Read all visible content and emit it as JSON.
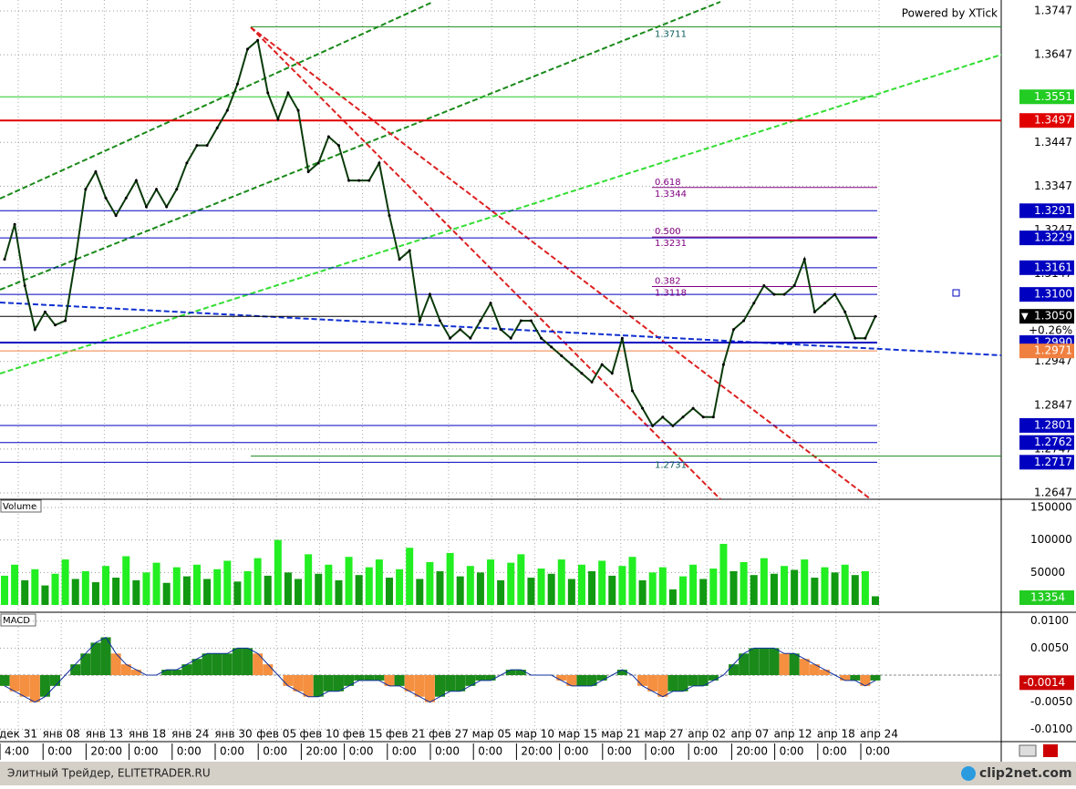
{
  "powered": "Powered by XTick",
  "price_axis": {
    "ticks": [
      1.3747,
      1.3647,
      1.3447,
      1.3347,
      1.3247,
      1.3147,
      1.2947,
      1.2847,
      1.2747,
      1.2647
    ],
    "range": [
      1.2647,
      1.3747
    ]
  },
  "levels": [
    {
      "value": 1.3551,
      "label": "1.3551",
      "color": "#22cc22"
    },
    {
      "value": 1.3497,
      "label": "1.3497",
      "color": "#e00000"
    },
    {
      "value": 1.3291,
      "label": "1.3291",
      "color": "#0000c0"
    },
    {
      "value": 1.3229,
      "label": "1.3229",
      "color": "#0000c0"
    },
    {
      "value": 1.3161,
      "label": "1.3161",
      "color": "#0000c0"
    },
    {
      "value": 1.31,
      "label": "1.3100",
      "color": "#0000c0"
    },
    {
      "value": 1.305,
      "label": "1.3050",
      "color": "#000000"
    },
    {
      "value": 1.299,
      "label": "1.2990",
      "color": "#0000c0"
    },
    {
      "value": 1.2971,
      "label": "1.2971",
      "color": "#f08040"
    },
    {
      "value": 1.2801,
      "label": "1.2801",
      "color": "#0000c0"
    },
    {
      "value": 1.2762,
      "label": "1.2762",
      "color": "#0000c0"
    },
    {
      "value": 1.2717,
      "label": "1.2717",
      "color": "#0000c0"
    }
  ],
  "change": "+0.26%",
  "fib": [
    {
      "ratio": "0.618",
      "value": 1.3344,
      "label": "1.3344"
    },
    {
      "ratio": "0.500",
      "value": 1.3231,
      "label": "1.3231"
    },
    {
      "ratio": "0.382",
      "value": 1.3118,
      "label": "1.3118"
    }
  ],
  "extremes": [
    {
      "value": 1.3711,
      "label": "1.3711"
    },
    {
      "value": 1.2731,
      "label": "1.2731"
    }
  ],
  "closes": [
    1.318,
    1.326,
    1.312,
    1.302,
    1.306,
    1.303,
    1.304,
    1.318,
    1.334,
    1.338,
    1.332,
    1.328,
    1.332,
    1.336,
    1.33,
    1.334,
    1.33,
    1.334,
    1.34,
    1.344,
    1.344,
    1.348,
    1.352,
    1.358,
    1.366,
    1.368,
    1.356,
    1.35,
    1.356,
    1.352,
    1.338,
    1.34,
    1.346,
    1.344,
    1.336,
    1.336,
    1.336,
    1.34,
    1.328,
    1.318,
    1.32,
    1.304,
    1.31,
    1.304,
    1.3,
    1.302,
    1.3,
    1.304,
    1.308,
    1.302,
    1.3,
    1.304,
    1.304,
    1.3,
    1.298,
    1.296,
    1.294,
    1.292,
    1.29,
    1.294,
    1.292,
    1.3,
    1.288,
    1.284,
    1.28,
    1.282,
    1.28,
    1.282,
    1.284,
    1.282,
    1.282,
    1.294,
    1.302,
    1.304,
    1.308,
    1.312,
    1.31,
    1.31,
    1.312,
    1.318,
    1.306,
    1.308,
    1.31,
    1.306,
    1.3,
    1.3,
    1.305
  ],
  "volume": {
    "title": "Volume",
    "ticks": [
      150000,
      100000,
      50000
    ],
    "range": [
      0,
      150000
    ],
    "values": [
      45000,
      62000,
      38000,
      55000,
      30000,
      48000,
      70000,
      40000,
      52000,
      35000,
      60000,
      42000,
      75000,
      38000,
      50000,
      65000,
      34000,
      58000,
      44000,
      62000,
      40000,
      55000,
      68000,
      36000,
      52000,
      72000,
      45000,
      100000,
      50000,
      40000,
      78000,
      48000,
      62000,
      38000,
      74000,
      46000,
      58000,
      70000,
      42000,
      55000,
      88000,
      40000,
      66000,
      52000,
      80000,
      44000,
      60000,
      50000,
      70000,
      38000,
      65000,
      78000,
      42000,
      56000,
      48000,
      70000,
      40000,
      62000,
      52000,
      68000,
      45000,
      60000,
      74000,
      38000,
      50000,
      58000,
      24000,
      44000,
      62000,
      40000,
      56000,
      94000,
      52000,
      66000,
      46000,
      72000,
      48000,
      60000,
      54000,
      70000,
      42000,
      58000,
      50000,
      62000,
      46000,
      52000,
      13354
    ]
  },
  "macd": {
    "title": "MACD",
    "ticks": [
      {
        "value": 0.01,
        "label": "0.0100"
      },
      {
        "value": 0.005,
        "label": "0.0050"
      },
      {
        "value": -0.005,
        "label": "-0.0050"
      },
      {
        "value": -0.01,
        "label": "-0.0100"
      }
    ],
    "range": [
      -0.0113,
      0.0113
    ],
    "last": {
      "value": -0.0014,
      "label": "-0.0014"
    },
    "values": [
      -0.002,
      -0.003,
      -0.004,
      -0.005,
      -0.004,
      -0.002,
      0.0,
      0.002,
      0.004,
      0.006,
      0.007,
      0.004,
      0.002,
      0.001,
      0.0,
      0.0,
      0.001,
      0.001,
      0.002,
      0.003,
      0.004,
      0.004,
      0.004,
      0.005,
      0.005,
      0.004,
      0.002,
      0.0,
      -0.002,
      -0.003,
      -0.004,
      -0.004,
      -0.003,
      -0.003,
      -0.002,
      -0.001,
      -0.001,
      -0.001,
      -0.002,
      -0.002,
      -0.003,
      -0.004,
      -0.005,
      -0.004,
      -0.003,
      -0.003,
      -0.002,
      -0.001,
      -0.001,
      0.0,
      0.001,
      0.001,
      0.0,
      0.0,
      0.0,
      -0.001,
      -0.002,
      -0.002,
      -0.002,
      -0.001,
      0.0,
      0.001,
      0.0,
      -0.002,
      -0.003,
      -0.004,
      -0.003,
      -0.003,
      -0.002,
      -0.002,
      -0.001,
      0.0,
      0.002,
      0.004,
      0.005,
      0.005,
      0.005,
      0.004,
      0.004,
      0.003,
      0.002,
      0.001,
      0.0,
      -0.001,
      -0.001,
      -0.002,
      -0.001
    ]
  },
  "dates": [
    "дек 31",
    "янв 08",
    "янв 13",
    "янв 18",
    "янв 24",
    "янв 30",
    "фев 05",
    "фев 10",
    "фев 15",
    "фев 21",
    "фев 27",
    "мар 05",
    "мар 10",
    "мар 15",
    "мар 21",
    "мар 27",
    "апр 02",
    "апр 07",
    "апр 12",
    "апр 18",
    "апр 24"
  ],
  "times": [
    "4:00",
    "0:00",
    "20:00",
    "0:00",
    "0:00",
    "0:00",
    "0:00",
    "20:00",
    "0:00",
    "0:00",
    "0:00",
    "0:00",
    "20:00",
    "0:00",
    "0:00",
    "0:00",
    "0:00",
    "20:00",
    "0:00",
    "0:00",
    "0:00"
  ],
  "status": "Элитный Трейдер, ELITETRADER.RU",
  "logo": "clip2net.com"
}
